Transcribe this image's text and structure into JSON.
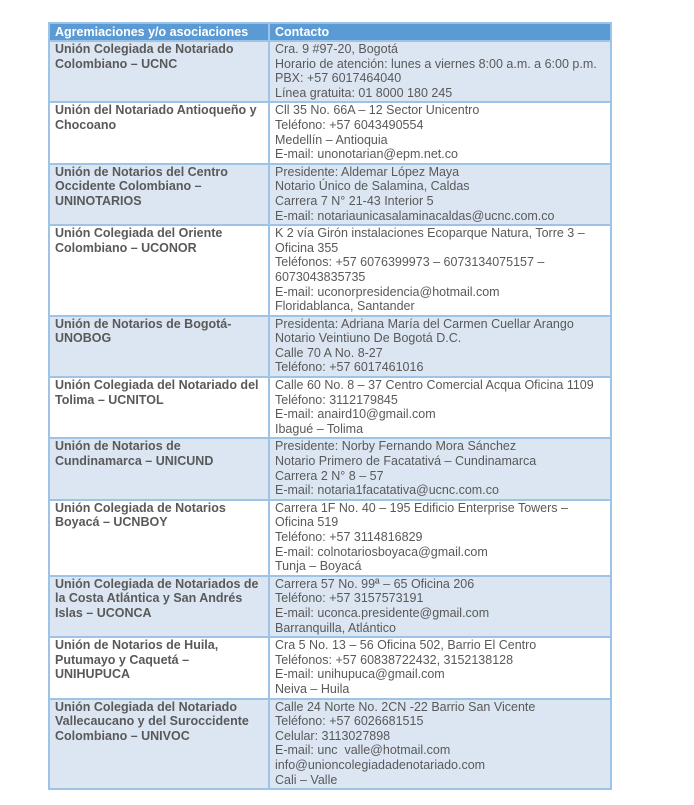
{
  "table": {
    "headers": [
      "Agremiaciones y/o asociaciones",
      "Contacto"
    ],
    "rows": [
      {
        "name": "Unión Colegiada de Notariado Colombiano – UCNC",
        "contact": [
          "Cra. 9 #97-20, Bogotá",
          "Horario de atención: lunes a viernes 8:00 a.m. a 6:00 p.m.",
          "PBX: +57 6017464040",
          "Línea gratuita: 01 8000 180 245"
        ]
      },
      {
        "name": "Unión del Notariado Antioqueño y Chocoano",
        "contact": [
          "Cll 35 No. 66A – 12 Sector Unicentro",
          "Teléfono: +57 6043490554",
          "Medellín – Antioquia",
          "E-mail: unonotarian@epm.net.co"
        ]
      },
      {
        "name": "Unión de Notarios del Centro Occidente Colombiano – UNINOTARIOS",
        "contact": [
          "Presidente: Aldemar López Maya",
          "Notario Único de Salamina, Caldas",
          "Carrera 7 N° 21-43 Interior 5",
          "E-mail: notariaunicasalaminacaldas@ucnc.com.co"
        ]
      },
      {
        "name": "Unión Colegiada del Oriente Colombiano – UCONOR",
        "contact": [
          "K 2 vía Girón instalaciones Ecoparque Natura, Torre 3 – Oficina 355",
          "Teléfonos: +57 6076399973 – 6073134075157 – 6073043835735",
          "E-mail: uconorpresidencia@hotmail.com",
          "Floridablanca, Santander"
        ]
      },
      {
        "name": "Unión de Notarios de Bogotá- UNOBOG",
        "contact": [
          "Presidenta: Adriana María del Carmen Cuellar Arango",
          "Notario Veintiuno De Bogotá D.C.",
          "Calle 70 A No. 8-27",
          "Teléfono: +57 6017461016"
        ]
      },
      {
        "name": "Unión Colegiada del Notariado del Tolima – UCNITOL",
        "contact": [
          "Calle 60 No. 8 – 37 Centro Comercial Acqua Oficina 1109",
          "Teléfono: 3112179845",
          "E-mail: anaird10@gmail.com",
          "Ibagué – Tolima"
        ]
      },
      {
        "name": "Unión de Notarios de Cundinamarca – UNICUND",
        "contact": [
          "Presidente: Norby Fernando Mora Sánchez",
          "Notario Primero de Facatativá – Cundinamarca",
          "Carrera 2 N° 8 – 57",
          "E-mail: notaria1facatativa@ucnc.com.co"
        ]
      },
      {
        "name": "Unión Colegiada de Notarios Boyacá – UCNBOY",
        "contact": [
          "Carrera 1F No. 40 – 195 Edificio Enterprise Towers – Oficina 519",
          "Teléfono: +57 3114816829",
          "E-mail: colnotariosboyaca@gmail.com",
          "Tunja – Boyacá"
        ]
      },
      {
        "name": "Unión Colegiada de Notariados de la Costa Atlántica y San Andrés Islas – UCONCA",
        "contact": [
          "Carrera 57 No. 99ª – 65 Oficina 206",
          "Teléfono: +57 3157573191",
          "E-mail: uconca.presidente@gmail.com",
          "Barranquilla, Atlántico"
        ]
      },
      {
        "name": "Unión de Notarios de Huila, Putumayo y Caquetá – UNIHUPUCA",
        "contact": [
          "Cra 5 No. 13 – 56 Oficina 502, Barrio El Centro",
          "Teléfonos: +57 60838722432, 3152138128",
          "E-mail: unihupuca@gmail.com",
          "Neiva – Huila"
        ]
      },
      {
        "name": "Unión Colegiada del Notariado Vallecaucano y del Suroccidente Colombiano – UNIVOC",
        "contact": [
          "Calle 24 Norte No. 2CN -22 Barrio San Vicente",
          "Teléfono: +57 6026681515",
          "Celular: 3113027898",
          "E-mail: unc  valle@hotmail.com",
          "info@unioncolegiadadenotariado.com",
          "Cali – Valle"
        ]
      }
    ]
  },
  "colors": {
    "header": "#5b9bd5",
    "band": "#dce6f2",
    "border": "#9dc3e6",
    "text": "#595959"
  }
}
